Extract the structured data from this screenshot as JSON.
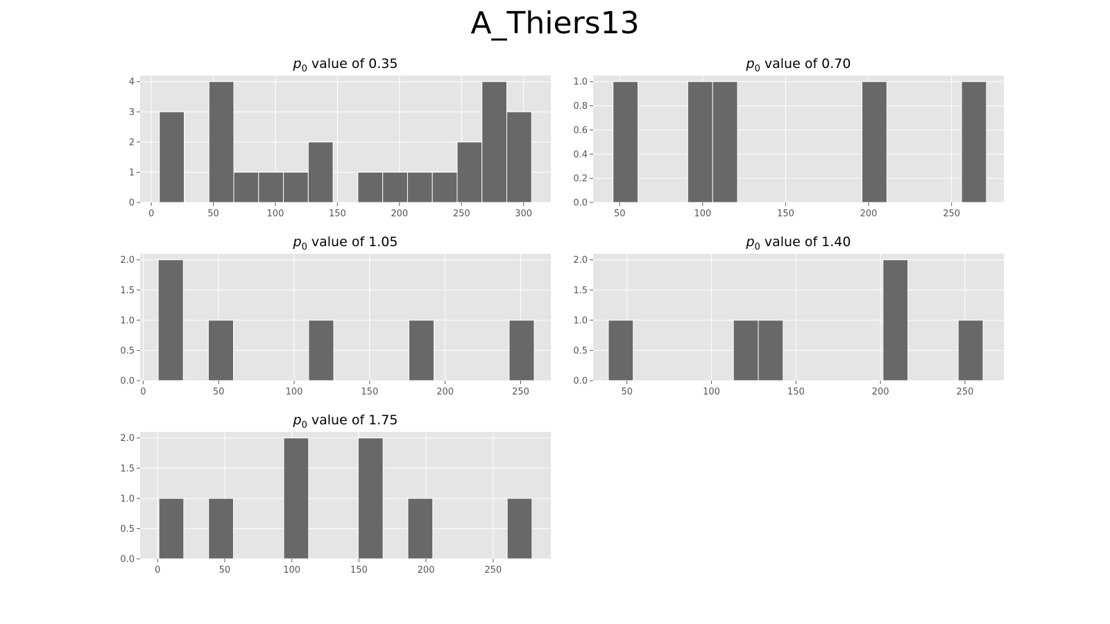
{
  "figure": {
    "title": "A_Thiers13"
  },
  "style": {
    "panel_bg": "#e5e5e5",
    "grid": "#ffffff",
    "bar_fill": "#686868",
    "bar_edge": "#ffffff",
    "tick_color": "#555555",
    "title_color": "#000000"
  },
  "chart_data": [
    {
      "type": "bar",
      "title_prefix": "p",
      "title_sub": "0",
      "title_suffix": " value of 0.35",
      "xticks": [
        0,
        50,
        100,
        150,
        200,
        250,
        300
      ],
      "yticks": [
        "0",
        "1",
        "2",
        "3",
        "4"
      ],
      "xlim": [
        -9,
        322
      ],
      "ylim": [
        0,
        4.2
      ],
      "bar_width": 20,
      "bars": [
        {
          "x": 6.5,
          "value": 3
        },
        {
          "x": 46.5,
          "value": 4
        },
        {
          "x": 66.5,
          "value": 1
        },
        {
          "x": 86.5,
          "value": 1
        },
        {
          "x": 106.5,
          "value": 1
        },
        {
          "x": 126.5,
          "value": 2
        },
        {
          "x": 166.5,
          "value": 1
        },
        {
          "x": 186.5,
          "value": 1
        },
        {
          "x": 206.5,
          "value": 1
        },
        {
          "x": 226.5,
          "value": 1
        },
        {
          "x": 246.5,
          "value": 2
        },
        {
          "x": 266.5,
          "value": 4
        },
        {
          "x": 286.5,
          "value": 3
        }
      ]
    },
    {
      "type": "bar",
      "title_prefix": "p",
      "title_sub": "0",
      "title_suffix": " value of 0.70",
      "xticks": [
        50,
        100,
        150,
        200,
        250
      ],
      "yticks": [
        "0.0",
        "0.2",
        "0.4",
        "0.6",
        "0.8",
        "1.0"
      ],
      "xlim": [
        34,
        281.5
      ],
      "ylim": [
        0,
        1.05
      ],
      "bar_width": 15,
      "bars": [
        {
          "x": 46,
          "value": 1
        },
        {
          "x": 91,
          "value": 1
        },
        {
          "x": 106,
          "value": 1
        },
        {
          "x": 196,
          "value": 1
        },
        {
          "x": 256,
          "value": 1
        }
      ]
    },
    {
      "type": "bar",
      "title_prefix": "p",
      "title_sub": "0",
      "title_suffix": " value of 1.05",
      "xticks": [
        0,
        50,
        100,
        150,
        200,
        250
      ],
      "yticks": [
        "0.0",
        "0.5",
        "1.0",
        "1.5",
        "2.0"
      ],
      "xlim": [
        -2,
        270
      ],
      "ylim": [
        0,
        2.1
      ],
      "bar_width": 16.6,
      "bars": [
        {
          "x": 10,
          "value": 2
        },
        {
          "x": 43.2,
          "value": 1
        },
        {
          "x": 109.6,
          "value": 1
        },
        {
          "x": 176,
          "value": 1
        },
        {
          "x": 242.4,
          "value": 1
        }
      ]
    },
    {
      "type": "bar",
      "title_prefix": "p",
      "title_sub": "0",
      "title_suffix": " value of 1.40",
      "xticks": [
        50,
        100,
        150,
        200,
        250
      ],
      "yticks": [
        "0.0",
        "0.5",
        "1.0",
        "1.5",
        "2.0"
      ],
      "xlim": [
        30,
        273
      ],
      "ylim": [
        0,
        2.1
      ],
      "bar_width": 14.7,
      "bars": [
        {
          "x": 39,
          "value": 1
        },
        {
          "x": 113,
          "value": 1
        },
        {
          "x": 127.7,
          "value": 1
        },
        {
          "x": 201.5,
          "value": 2
        },
        {
          "x": 246,
          "value": 1
        }
      ]
    },
    {
      "type": "bar",
      "title_prefix": "p",
      "title_sub": "0",
      "title_suffix": " value of 1.75",
      "xticks": [
        0,
        50,
        100,
        150,
        200,
        250
      ],
      "yticks": [
        "0.0",
        "0.5",
        "1.0",
        "1.5",
        "2.0"
      ],
      "xlim": [
        -13,
        293
      ],
      "ylim": [
        0,
        2.1
      ],
      "bar_width": 18.5,
      "bars": [
        {
          "x": 1,
          "value": 1
        },
        {
          "x": 38,
          "value": 1
        },
        {
          "x": 94,
          "value": 2
        },
        {
          "x": 149.5,
          "value": 2
        },
        {
          "x": 186.5,
          "value": 1
        },
        {
          "x": 260.5,
          "value": 1
        }
      ]
    }
  ]
}
